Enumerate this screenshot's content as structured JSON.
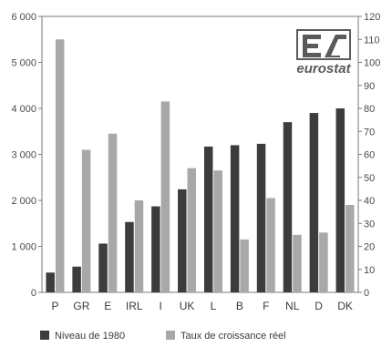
{
  "chart_data": {
    "type": "bar",
    "categories": [
      "P",
      "GR",
      "E",
      "IRL",
      "I",
      "UK",
      "L",
      "B",
      "F",
      "NL",
      "D",
      "DK"
    ],
    "series": [
      {
        "name": "Niveau de 1980",
        "axis": "left",
        "color": "#3c3c3c",
        "values": [
          430,
          560,
          1060,
          1530,
          1870,
          2240,
          3170,
          3200,
          3230,
          3700,
          3900,
          4000
        ]
      },
      {
        "name": "Taux de croissance réel",
        "axis": "right",
        "color": "#a8a8a8",
        "values": [
          110,
          62,
          69,
          40,
          83,
          54,
          53,
          23,
          41,
          25,
          26,
          38
        ]
      }
    ],
    "y_left": {
      "lim": [
        0,
        6000
      ],
      "ticks": [
        "0",
        "1 000",
        "2 000",
        "3 000",
        "4 000",
        "5 000",
        "6 000"
      ]
    },
    "y_right": {
      "lim": [
        0,
        120
      ],
      "ticks": [
        "0",
        "10",
        "20",
        "30",
        "40",
        "50",
        "60",
        "70",
        "80",
        "90",
        "100",
        "110",
        "120"
      ]
    },
    "title": "",
    "xlabel": "",
    "ylabel": "",
    "grid": false,
    "legend": "bottom-left"
  },
  "logo": {
    "text": "eurostat",
    "color": "#5a5a5a"
  }
}
